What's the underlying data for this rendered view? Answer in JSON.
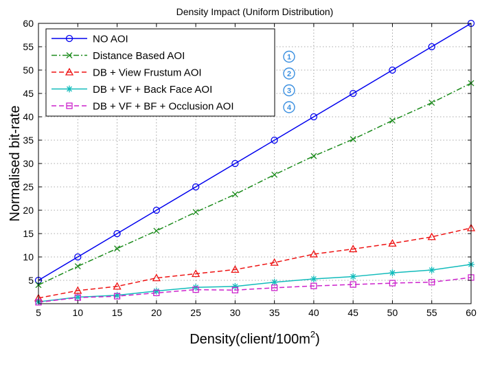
{
  "chart_data": {
    "type": "line",
    "title": "Density Impact (Uniform Distribution)",
    "xlabel": "Density(client/100m",
    "xlabel_superscript": "2",
    "xlabel_close": ")",
    "ylabel": "Normalised bit-rate",
    "xlim": [
      5,
      60
    ],
    "ylim": [
      0,
      60
    ],
    "xticks": [
      5,
      10,
      15,
      20,
      25,
      30,
      35,
      40,
      45,
      50,
      55,
      60
    ],
    "yticks": [
      5,
      10,
      15,
      20,
      25,
      30,
      35,
      40,
      45,
      50,
      55,
      60
    ],
    "grid": true,
    "legend_position": "top-left",
    "x": [
      5,
      10,
      15,
      20,
      25,
      30,
      35,
      40,
      45,
      50,
      55,
      60
    ],
    "series": [
      {
        "name": "NO AOI",
        "values": [
          5,
          10,
          15,
          20,
          25,
          30,
          35,
          40,
          45,
          50,
          55,
          60
        ],
        "color": "#0000ee",
        "marker": "circle",
        "dash": "solid",
        "badge": ""
      },
      {
        "name": "Distance Based AOI",
        "values": [
          4,
          8,
          11.8,
          15.6,
          19.6,
          23.4,
          27.6,
          31.6,
          35.2,
          39.2,
          43,
          47.2
        ],
        "color": "#1a8a1a",
        "marker": "x",
        "dash": "dashdot",
        "badge": "1"
      },
      {
        "name": "DB + View Frustum AOI",
        "values": [
          1.2,
          2.8,
          3.7,
          5.5,
          6.4,
          7.3,
          8.8,
          10.6,
          11.7,
          12.9,
          14.3,
          16.2
        ],
        "color": "#ee1111",
        "marker": "triangle",
        "dash": "dashed",
        "badge": "2"
      },
      {
        "name": "DB + VF + Back Face AOI",
        "values": [
          0.4,
          1.4,
          1.8,
          2.7,
          3.5,
          3.7,
          4.6,
          5.3,
          5.8,
          6.6,
          7.2,
          8.4
        ],
        "color": "#11bbbb",
        "marker": "star",
        "dash": "solid",
        "badge": "3"
      },
      {
        "name": "DB + VF + BF + Occlusion AOI",
        "values": [
          0.3,
          1.3,
          1.6,
          2.3,
          3.0,
          2.9,
          3.4,
          3.8,
          4.1,
          4.4,
          4.6,
          5.6
        ],
        "color": "#cc22cc",
        "marker": "square",
        "dash": "dashed",
        "badge": "4"
      }
    ],
    "badge_color": "#3a8fe0"
  }
}
